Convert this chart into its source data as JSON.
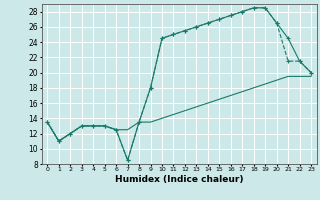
{
  "xlabel": "Humidex (Indice chaleur)",
  "background_color": "#cce8e8",
  "grid_color": "#ffffff",
  "line_color": "#1a7a6a",
  "xlim": [
    -0.5,
    23.5
  ],
  "ylim": [
    8,
    29
  ],
  "xticks": [
    0,
    1,
    2,
    3,
    4,
    5,
    6,
    7,
    8,
    9,
    10,
    11,
    12,
    13,
    14,
    15,
    16,
    17,
    18,
    19,
    20,
    21,
    22,
    23
  ],
  "yticks": [
    8,
    10,
    12,
    14,
    16,
    18,
    20,
    22,
    24,
    26,
    28
  ],
  "line1_x": [
    0,
    1,
    2,
    3,
    4,
    5,
    6,
    7,
    8,
    9,
    10,
    11,
    12,
    13,
    14,
    15,
    16,
    17,
    18,
    19,
    20,
    21,
    22,
    23
  ],
  "line1_y": [
    13.5,
    11.0,
    12.0,
    13.0,
    13.0,
    13.0,
    12.5,
    8.5,
    13.5,
    18.0,
    24.5,
    25.0,
    25.5,
    26.0,
    26.5,
    27.0,
    27.5,
    28.0,
    28.5,
    28.5,
    26.5,
    24.5,
    21.5,
    20.0
  ],
  "line2_x": [
    0,
    1,
    2,
    3,
    4,
    5,
    6,
    7,
    8,
    9,
    10,
    11,
    12,
    13,
    14,
    15,
    16,
    17,
    18,
    19,
    20,
    21,
    22,
    23
  ],
  "line2_y": [
    13.5,
    11.0,
    12.0,
    13.0,
    13.0,
    13.0,
    12.5,
    12.5,
    13.5,
    13.5,
    14.0,
    14.5,
    15.0,
    15.5,
    16.0,
    16.5,
    17.0,
    17.5,
    18.0,
    18.5,
    19.0,
    19.5,
    19.5,
    19.5
  ],
  "line3_x": [
    0,
    1,
    2,
    3,
    4,
    5,
    6,
    7,
    8,
    9,
    10,
    11,
    12,
    13,
    14,
    15,
    16,
    17,
    18,
    19,
    20,
    21,
    22,
    23
  ],
  "line3_y": [
    13.5,
    11.0,
    12.0,
    13.0,
    13.0,
    13.0,
    12.5,
    8.5,
    13.5,
    18.0,
    24.5,
    25.0,
    25.5,
    26.0,
    26.5,
    27.0,
    27.5,
    28.0,
    28.5,
    28.5,
    26.5,
    21.5,
    21.5,
    20.0
  ]
}
